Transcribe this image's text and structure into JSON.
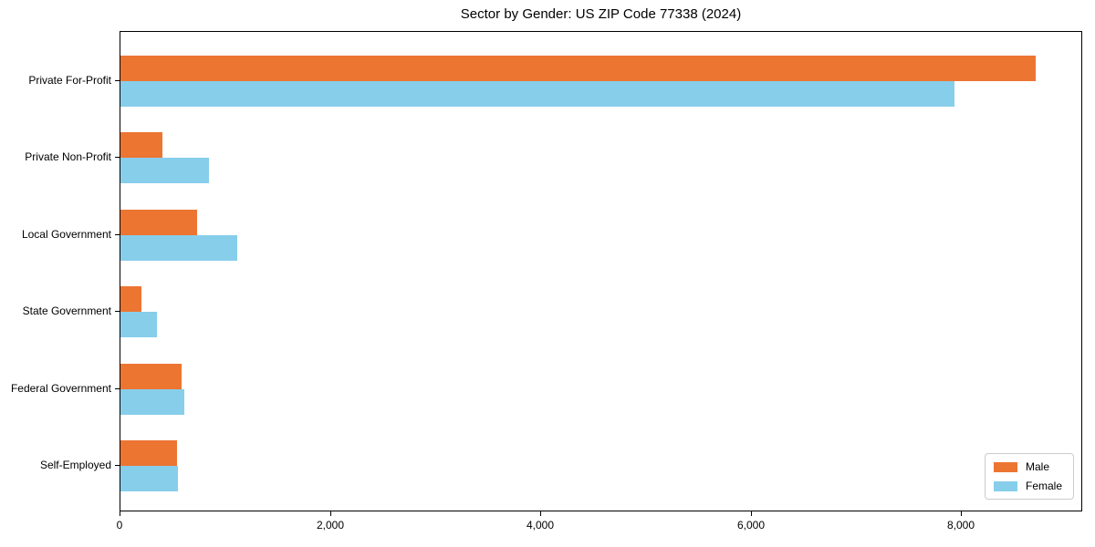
{
  "chart_data": {
    "type": "bar",
    "orientation": "horizontal",
    "title": "Sector by Gender: US ZIP Code 77338 (2024)",
    "xlabel": "",
    "ylabel": "",
    "categories": [
      "Private For-Profit",
      "Private Non-Profit",
      "Local Government",
      "State Government",
      "Federal Government",
      "Self-Employed"
    ],
    "series": [
      {
        "name": "Male",
        "color": "#EC7532",
        "values": [
          8700,
          400,
          730,
          200,
          580,
          540
        ]
      },
      {
        "name": "Female",
        "color": "#87CEEB",
        "values": [
          7930,
          845,
          1110,
          345,
          605,
          548
        ]
      }
    ],
    "xlim": [
      0,
      9150
    ],
    "x_ticks": [
      0,
      2000,
      4000,
      6000,
      8000
    ],
    "x_tick_labels": [
      "0",
      "2,000",
      "4,000",
      "6,000",
      "8,000"
    ],
    "grid": false,
    "legend": {
      "position": "lower right",
      "entries": [
        "Male",
        "Female"
      ]
    }
  }
}
